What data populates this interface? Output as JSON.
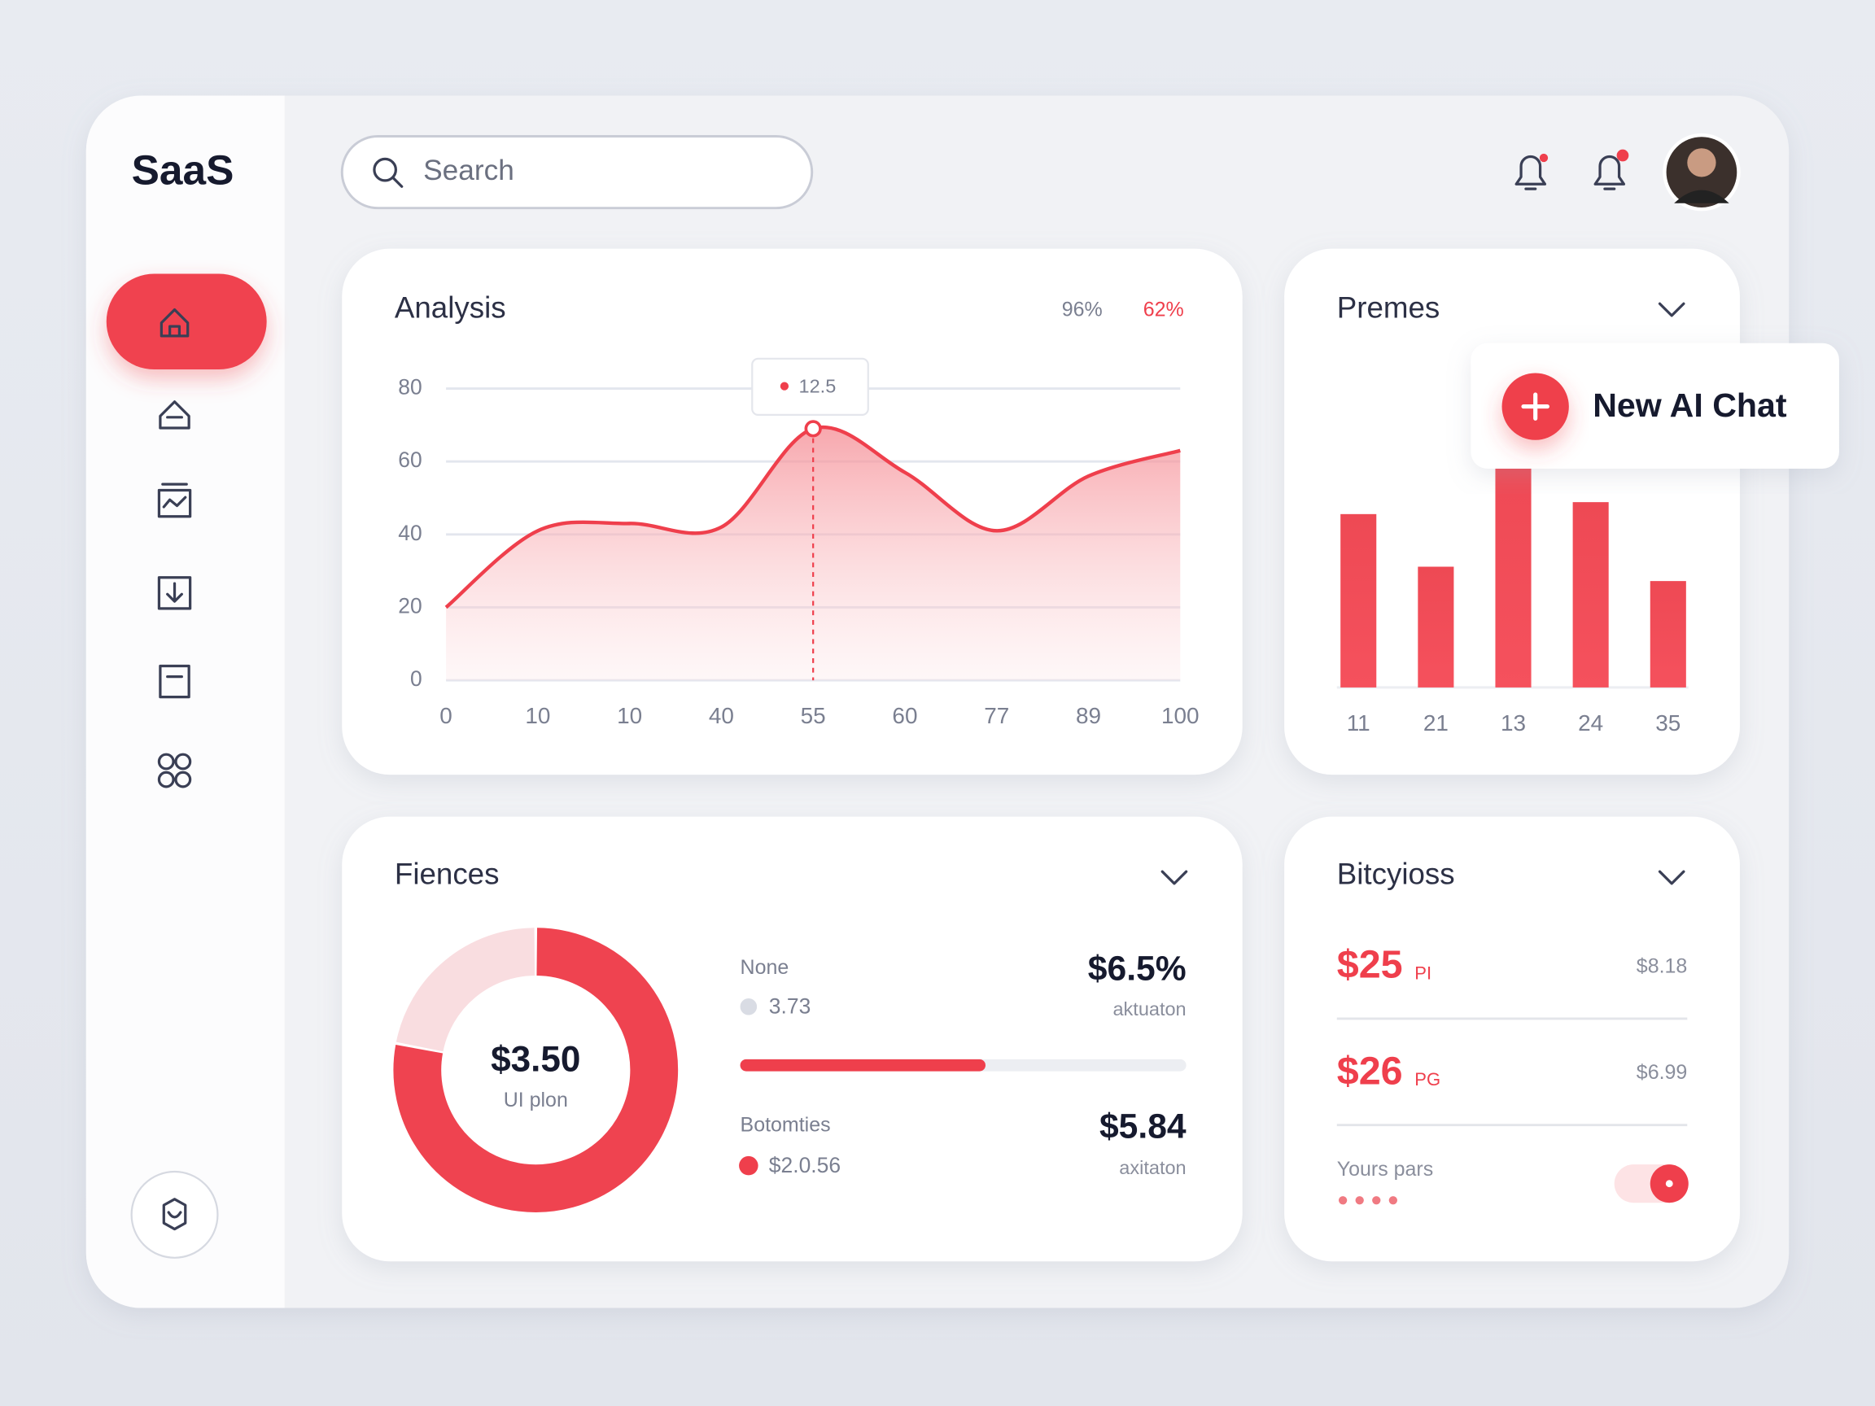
{
  "sidebar": {
    "logo": "SaaS"
  },
  "header": {
    "search_placeholder": "Search"
  },
  "popup": {
    "label": "New AI Chat"
  },
  "chart_data": [
    {
      "type": "line",
      "title": "Analysis",
      "stats": [
        "96%",
        "62%"
      ],
      "annotation": "12.5",
      "categories": [
        "0",
        "10",
        "10",
        "40",
        "55",
        "60",
        "77",
        "89",
        "100"
      ],
      "values": [
        20,
        41,
        43,
        42,
        69,
        57,
        41,
        56,
        63
      ],
      "color": "#ef3f4c",
      "ylim": [
        0,
        80
      ],
      "yticks": [
        0,
        20,
        40,
        60,
        80
      ],
      "grid": true
    },
    {
      "type": "bar",
      "title": "Premes",
      "categories": [
        "11",
        "21",
        "13",
        "24",
        "35"
      ],
      "values": [
        145,
        101,
        195,
        155,
        89
      ],
      "color": "#ef3f4c",
      "ylim": [
        0,
        200
      ]
    },
    {
      "type": "donut",
      "title": "Fiences",
      "center_value": "$3.50",
      "center_label": "UI plon",
      "values": [
        78,
        22
      ],
      "colors": [
        "#ef4350",
        "#f9dde0"
      ]
    }
  ],
  "fiences_details": {
    "rows": [
      {
        "label": "None",
        "sub": "3.73",
        "amount": "$6.5%",
        "note": "aktuaton"
      },
      {
        "label": "Botomties",
        "sub": "$2.0.56",
        "amount": "$5.84",
        "note": "axitaton"
      }
    ],
    "progress": 55,
    "progress_lim": [
      0,
      100
    ]
  },
  "bitcyioss": {
    "title": "Bitcyioss",
    "rows": [
      {
        "amount": "$25",
        "unit": "PI",
        "side": "$8.18"
      },
      {
        "amount": "$26",
        "unit": "PG",
        "side": "$6.99"
      }
    ],
    "toggle_label": "Yours pars"
  }
}
